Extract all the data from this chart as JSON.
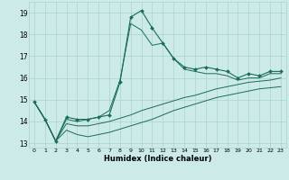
{
  "xlabel": "Humidex (Indice chaleur)",
  "bg_color": "#cceae7",
  "grid_color": "#aad4d0",
  "line_color": "#1a6b5a",
  "xlim": [
    -0.5,
    23.5
  ],
  "ylim": [
    12.8,
    19.5
  ],
  "yticks": [
    13,
    14,
    15,
    16,
    17,
    18,
    19
  ],
  "xticks": [
    0,
    1,
    2,
    3,
    4,
    5,
    6,
    7,
    8,
    9,
    10,
    11,
    12,
    13,
    14,
    15,
    16,
    17,
    18,
    19,
    20,
    21,
    22,
    23
  ],
  "s1_x": [
    0,
    1,
    2,
    3,
    4,
    5,
    6,
    7,
    8,
    9,
    10,
    11,
    12,
    13,
    14,
    15,
    16,
    17,
    18,
    19,
    20,
    21,
    22,
    23
  ],
  "s1_y": [
    14.9,
    14.1,
    13.1,
    14.2,
    14.1,
    14.1,
    14.2,
    14.3,
    15.8,
    18.8,
    19.1,
    18.3,
    17.6,
    16.9,
    16.5,
    16.4,
    16.5,
    16.4,
    16.3,
    16.0,
    16.2,
    16.1,
    16.3,
    16.3
  ],
  "s2_x": [
    0,
    1,
    2,
    3,
    4,
    5,
    6,
    7,
    8,
    9,
    10,
    11,
    12,
    13,
    14,
    15,
    16,
    17,
    18,
    19,
    20,
    21,
    22,
    23
  ],
  "s2_y": [
    14.9,
    14.1,
    13.1,
    14.1,
    14.0,
    14.1,
    14.2,
    14.5,
    15.9,
    18.5,
    18.2,
    17.5,
    17.6,
    16.9,
    16.4,
    16.3,
    16.2,
    16.2,
    16.1,
    15.9,
    16.0,
    16.0,
    16.2,
    16.2
  ],
  "s3_x": [
    0,
    1,
    2,
    3,
    4,
    5,
    6,
    7,
    8,
    9,
    10,
    11,
    12,
    13,
    14,
    15,
    16,
    17,
    18,
    19,
    20,
    21,
    22,
    23
  ],
  "s3_y": [
    14.9,
    14.1,
    13.1,
    13.9,
    13.8,
    13.8,
    13.9,
    14.0,
    14.15,
    14.3,
    14.5,
    14.65,
    14.8,
    14.95,
    15.1,
    15.2,
    15.35,
    15.5,
    15.6,
    15.7,
    15.8,
    15.85,
    15.9,
    16.0
  ],
  "s4_x": [
    0,
    1,
    2,
    3,
    4,
    5,
    6,
    7,
    8,
    9,
    10,
    11,
    12,
    13,
    14,
    15,
    16,
    17,
    18,
    19,
    20,
    21,
    22,
    23
  ],
  "s4_y": [
    14.9,
    14.1,
    13.1,
    13.6,
    13.4,
    13.3,
    13.4,
    13.5,
    13.65,
    13.8,
    13.95,
    14.1,
    14.3,
    14.5,
    14.65,
    14.8,
    14.95,
    15.1,
    15.2,
    15.3,
    15.4,
    15.5,
    15.55,
    15.6
  ]
}
